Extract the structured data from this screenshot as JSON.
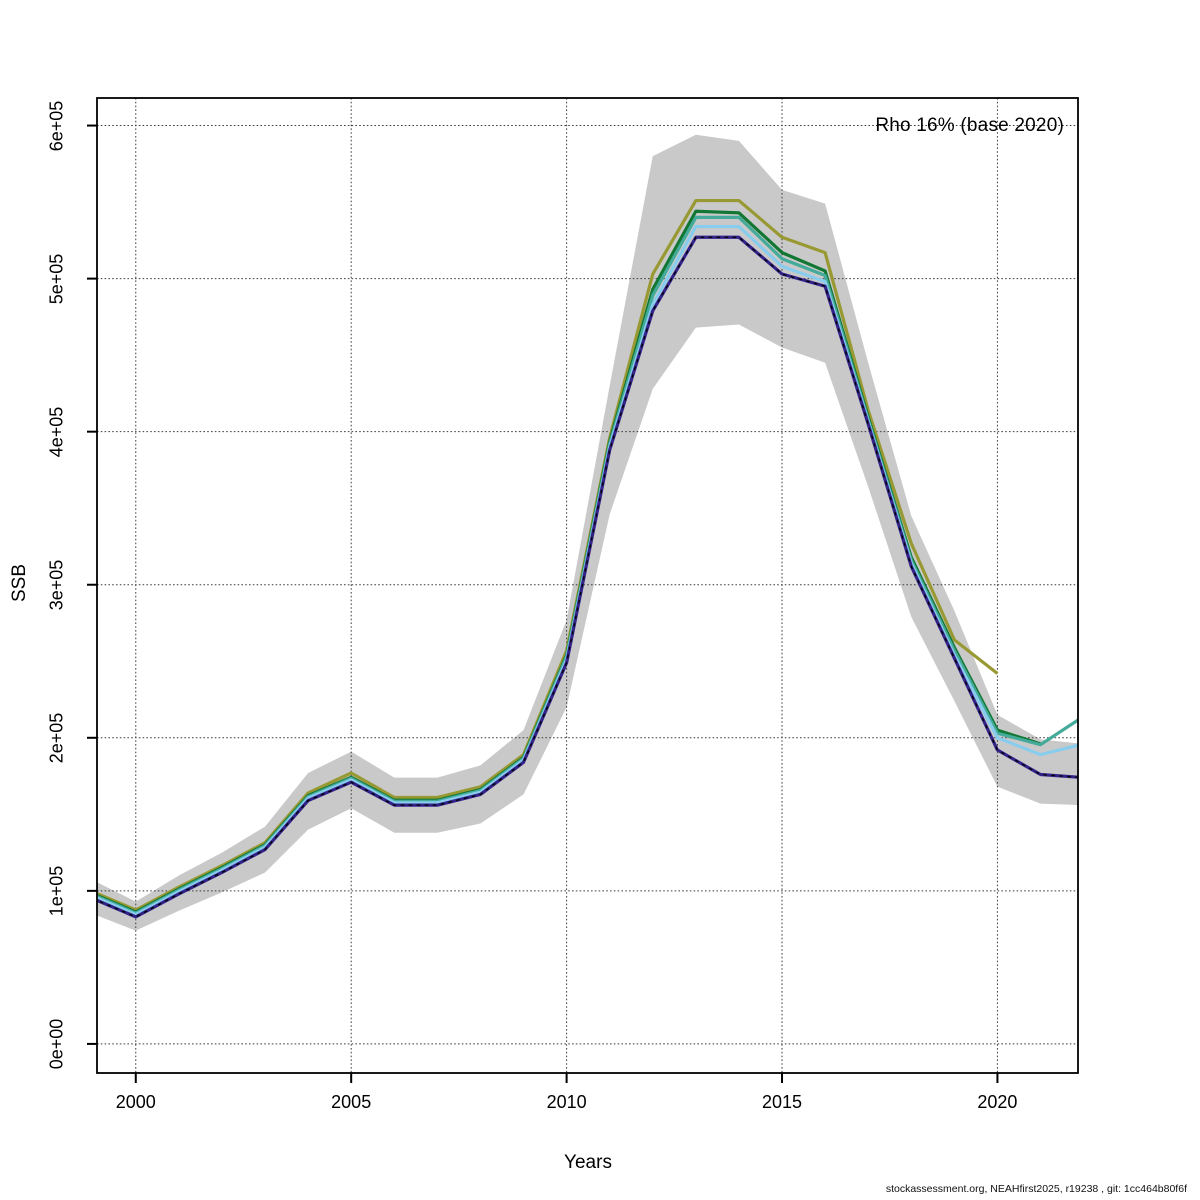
{
  "figure": {
    "footer": "stockassessment.org, NEAHfirst2025, r19238 , git: 1cc464b80f6f"
  },
  "chart_data": {
    "type": "line",
    "title": "Rho 16% (base 2020)",
    "xlabel": "Years",
    "ylabel": "SSB",
    "grid": true,
    "legend": "none",
    "xlim": [
      1999.1,
      2021.87
    ],
    "ylim": [
      -19000,
      618000
    ],
    "x_ticks": [
      2000,
      2005,
      2010,
      2015,
      2020
    ],
    "y_ticks": [
      0,
      100000,
      200000,
      300000,
      400000,
      500000,
      600000
    ],
    "y_tick_labels": [
      "0e+00",
      "1e+05",
      "2e+05",
      "3e+05",
      "4e+05",
      "5e+05",
      "6e+05"
    ],
    "colors": {
      "band": "#c9c9c9",
      "grid": "#3d3d3d",
      "axis": "#000000"
    },
    "band": {
      "name": "confidence-band",
      "color": "#c9c9c9",
      "start_year": 1999,
      "upper": [
        107000,
        93000,
        110000,
        125000,
        142000,
        177000,
        191000,
        174000,
        174000,
        182000,
        205000,
        277000,
        430000,
        580000,
        594000,
        590000,
        558000,
        549000,
        445000,
        345000,
        283000,
        215000,
        199000,
        196000
      ],
      "lower": [
        85000,
        74000,
        87000,
        99000,
        112000,
        140000,
        154000,
        138000,
        138000,
        144000,
        163000,
        220000,
        346000,
        428000,
        468000,
        470000,
        455000,
        445000,
        364000,
        279000,
        224000,
        168000,
        157000,
        156000
      ]
    },
    "series": [
      {
        "name": "retro-peel-2020-olive",
        "color": "#999933",
        "start_year": 1999,
        "values": [
          99500,
          87500,
          102500,
          116500,
          131500,
          164000,
          177000,
          161000,
          161000,
          168000,
          189000,
          257000,
          396000,
          503000,
          551000,
          551000,
          527000,
          517000,
          414000,
          327000,
          264000,
          242000
        ]
      },
      {
        "name": "retro-peel-2021-green",
        "color": "#117733",
        "start_year": 1999,
        "values": [
          98200,
          86200,
          101200,
          115200,
          130200,
          162200,
          174200,
          159200,
          159200,
          166200,
          187200,
          254000,
          393500,
          493000,
          544000,
          543000,
          517000,
          505000,
          409500,
          318000,
          259000,
          205000,
          196000
        ]
      },
      {
        "name": "run-2022-teal",
        "color": "#44AA99",
        "start_year": 1999,
        "values": [
          97500,
          85500,
          100500,
          114500,
          129500,
          161500,
          173500,
          158500,
          158500,
          165500,
          186500,
          253000,
          392000,
          489000,
          540000,
          540000,
          513000,
          502000,
          408000,
          316000,
          257000,
          203000,
          195500,
          214000
        ]
      },
      {
        "name": "run-2022-skyblue",
        "color": "#88CCEE",
        "start_year": 1999,
        "values": [
          96500,
          84500,
          99500,
          113500,
          128500,
          160500,
          172500,
          157500,
          157500,
          164500,
          185500,
          251000,
          390000,
          483000,
          534000,
          534000,
          508000,
          498000,
          406500,
          314000,
          254000,
          200000,
          189000,
          196000
        ]
      },
      {
        "name": "base-run-navy",
        "color": "#332288",
        "dotted_overlay": "#000000",
        "start_year": 1999,
        "values": [
          95000,
          83000,
          98000,
          112000,
          127000,
          159000,
          171000,
          156000,
          156000,
          163000,
          184000,
          249000,
          388000,
          479000,
          527000,
          527000,
          503000,
          495000,
          405000,
          312000,
          252000,
          192000,
          176000,
          174000
        ]
      }
    ]
  }
}
